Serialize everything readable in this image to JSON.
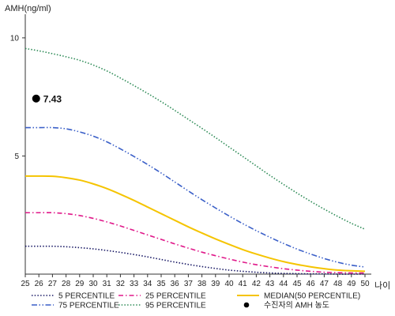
{
  "chart_data": {
    "type": "line",
    "ylabel": "AMH(ng/ml)",
    "xlabel": "나이",
    "xlim": [
      25,
      50
    ],
    "ylim": [
      0,
      11
    ],
    "yticks": [
      5,
      10
    ],
    "x": [
      25,
      26,
      27,
      28,
      29,
      30,
      31,
      32,
      33,
      34,
      35,
      36,
      37,
      38,
      39,
      40,
      41,
      42,
      43,
      44,
      45,
      46,
      47,
      48,
      49,
      50
    ],
    "series": [
      {
        "name": "5 PERCENTILE",
        "color": "#1a1a66",
        "dash": "dotted",
        "values": [
          1.18,
          1.18,
          1.18,
          1.16,
          1.12,
          1.07,
          1.0,
          0.92,
          0.83,
          0.73,
          0.62,
          0.51,
          0.41,
          0.32,
          0.24,
          0.17,
          0.12,
          0.08,
          0.05,
          0.03,
          0.02,
          0.01,
          0.01,
          0.0,
          0.0,
          0.0
        ]
      },
      {
        "name": "25 PERCENTILE",
        "color": "#e0198a",
        "dash": "dashdot",
        "values": [
          2.6,
          2.6,
          2.6,
          2.56,
          2.48,
          2.36,
          2.21,
          2.04,
          1.85,
          1.66,
          1.47,
          1.28,
          1.1,
          0.93,
          0.78,
          0.64,
          0.51,
          0.4,
          0.31,
          0.23,
          0.17,
          0.12,
          0.08,
          0.06,
          0.05,
          0.05
        ]
      },
      {
        "name": "MEDIAN(50 PERCENTILE)",
        "color": "#f5c400",
        "dash": "solid",
        "values": [
          4.15,
          4.15,
          4.14,
          4.08,
          3.98,
          3.82,
          3.62,
          3.38,
          3.12,
          2.84,
          2.56,
          2.28,
          2.0,
          1.74,
          1.49,
          1.26,
          1.04,
          0.85,
          0.68,
          0.53,
          0.41,
          0.31,
          0.23,
          0.17,
          0.14,
          0.12
        ]
      },
      {
        "name": "75 PERCENTILE",
        "color": "#3a5fc8",
        "dash": "dashdotdot",
        "values": [
          6.2,
          6.2,
          6.2,
          6.15,
          6.02,
          5.84,
          5.6,
          5.3,
          4.98,
          4.64,
          4.28,
          3.9,
          3.52,
          3.15,
          2.8,
          2.46,
          2.14,
          1.84,
          1.56,
          1.3,
          1.06,
          0.85,
          0.66,
          0.5,
          0.38,
          0.3
        ]
      },
      {
        "name": "95 PERCENTILE",
        "color": "#2e8b57",
        "dash": "dotted",
        "values": [
          9.55,
          9.45,
          9.33,
          9.2,
          9.05,
          8.85,
          8.6,
          8.3,
          7.98,
          7.65,
          7.3,
          6.93,
          6.55,
          6.17,
          5.78,
          5.38,
          4.98,
          4.58,
          4.18,
          3.8,
          3.43,
          3.08,
          2.75,
          2.44,
          2.15,
          1.9
        ]
      }
    ],
    "points": [
      {
        "name": "수진자의 AMH 농도",
        "x": 25.8,
        "y": 7.43,
        "label": "7.43",
        "color": "#000000"
      }
    ],
    "legend": [
      {
        "name": "5 PERCENTILE",
        "color": "#1a1a66",
        "dash": "dotted"
      },
      {
        "name": "25 PERCENTILE",
        "color": "#e0198a",
        "dash": "dashdot"
      },
      {
        "name": "MEDIAN(50 PERCENTILE)",
        "color": "#f5c400",
        "dash": "solid"
      },
      {
        "name": "75 PERCENTILE",
        "color": "#3a5fc8",
        "dash": "dashdotdot"
      },
      {
        "name": "95 PERCENTILE",
        "color": "#2e8b57",
        "dash": "dotted"
      },
      {
        "name": "수진자의 AMH 농도",
        "color": "#000000",
        "dash": "marker"
      }
    ],
    "legend_placement": "bottom",
    "grid": false
  }
}
